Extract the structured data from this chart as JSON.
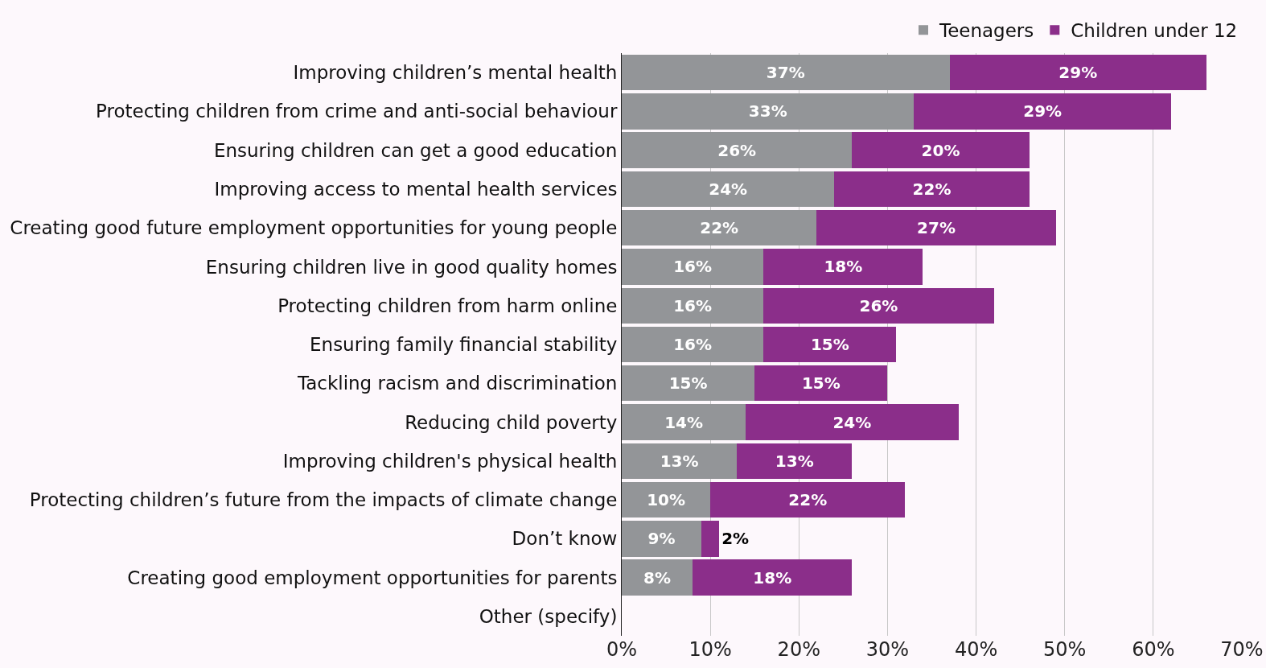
{
  "chart_data": {
    "type": "bar",
    "orientation": "horizontal",
    "stacked": true,
    "grid": "x",
    "legend": "top right",
    "categories": [
      "Improving children’s mental health",
      "Protecting children from crime and anti-social behaviour",
      "Ensuring children can get a good education",
      "Improving access to mental health services",
      "Creating good future employment opportunities for young people",
      "Ensuring children live in good quality homes",
      "Protecting children from harm online",
      "Ensuring family financial stability",
      "Tackling racism and discrimination",
      "Reducing child poverty",
      "Improving children's physical health",
      "Protecting children’s future from the impacts of climate change",
      "Don’t know",
      "Creating good employment opportunities for parents",
      "Other (specify)"
    ],
    "series": [
      {
        "name": "Teenagers",
        "color": "#939598",
        "values": [
          37,
          33,
          26,
          24,
          22,
          16,
          16,
          16,
          15,
          14,
          13,
          10,
          9,
          8,
          null
        ],
        "value_labels": [
          "37%",
          "33%",
          "26%",
          "24%",
          "22%",
          "16%",
          "16%",
          "16%",
          "15%",
          "14%",
          "13%",
          "10%",
          "9%",
          "8%",
          null
        ]
      },
      {
        "name": "Children under 12",
        "color": "#8b2e8a",
        "values": [
          29,
          29,
          20,
          22,
          27,
          18,
          26,
          15,
          15,
          24,
          13,
          22,
          2,
          18,
          null
        ],
        "value_labels": [
          "29%",
          "29%",
          "20%",
          "22%",
          "27%",
          "18%",
          "26%",
          "15%",
          "15%",
          "24%",
          "13%",
          "22%",
          "2%",
          "18%",
          null
        ]
      }
    ],
    "xlim": [
      0,
      70
    ],
    "xticks": [
      {
        "value": 0,
        "label": "0%"
      },
      {
        "value": 10,
        "label": "10%"
      },
      {
        "value": 20,
        "label": "20%"
      },
      {
        "value": 30,
        "label": "30%"
      },
      {
        "value": 40,
        "label": "40%"
      },
      {
        "value": 50,
        "label": "50%"
      },
      {
        "value": 60,
        "label": "60%"
      },
      {
        "value": 70,
        "label": "70%"
      }
    ]
  }
}
